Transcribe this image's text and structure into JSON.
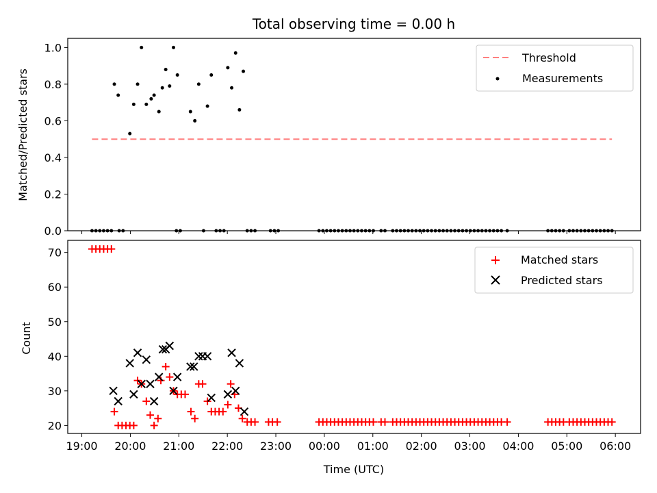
{
  "title": "Total observing time = 0.00 h",
  "chart_data": [
    {
      "type": "scatter",
      "ylabel": "Matched/Predicted stars",
      "xlabel": "",
      "xlim": [
        18.71,
        30.52
      ],
      "ylim": [
        0,
        1.05
      ],
      "x_ticks": [
        19,
        20,
        21,
        22,
        23,
        24,
        25,
        26,
        27,
        28,
        29,
        30
      ],
      "y_ticks": [
        0.0,
        0.2,
        0.4,
        0.6,
        0.8,
        1.0
      ],
      "y_tick_labels": [
        "0.0",
        "0.2",
        "0.4",
        "0.6",
        "0.8",
        "1.0"
      ],
      "grid": false,
      "legend": {
        "placement": "top-right",
        "entries": [
          "Threshold",
          "Measurements"
        ]
      },
      "series": [
        {
          "name": "Threshold",
          "kind": "dashed-line",
          "color": "#ff7f7f",
          "x": [
            19.21,
            29.93
          ],
          "y": [
            0.5,
            0.5
          ]
        },
        {
          "name": "Measurements",
          "kind": "dots",
          "color": "#000000",
          "points": [
            [
              19.21,
              0
            ],
            [
              19.29,
              0
            ],
            [
              19.37,
              0
            ],
            [
              19.45,
              0
            ],
            [
              19.53,
              0
            ],
            [
              19.61,
              0
            ],
            [
              19.77,
              0
            ],
            [
              19.85,
              0
            ],
            [
              20.95,
              0
            ],
            [
              21.03,
              0
            ],
            [
              21.51,
              0
            ],
            [
              21.77,
              0
            ],
            [
              21.85,
              0
            ],
            [
              21.93,
              0
            ],
            [
              22.41,
              0
            ],
            [
              22.49,
              0
            ],
            [
              22.57,
              0
            ],
            [
              22.89,
              0
            ],
            [
              22.97,
              0
            ],
            [
              23.05,
              0
            ],
            [
              23.89,
              0
            ],
            [
              23.97,
              0
            ],
            [
              24.05,
              0
            ],
            [
              24.13,
              0
            ],
            [
              24.21,
              0
            ],
            [
              24.29,
              0
            ],
            [
              24.37,
              0
            ],
            [
              24.45,
              0
            ],
            [
              24.53,
              0
            ],
            [
              24.61,
              0
            ],
            [
              24.69,
              0
            ],
            [
              24.77,
              0
            ],
            [
              24.85,
              0
            ],
            [
              24.93,
              0
            ],
            [
              25.01,
              0
            ],
            [
              25.17,
              0
            ],
            [
              25.25,
              0
            ],
            [
              25.41,
              0
            ],
            [
              25.49,
              0
            ],
            [
              25.57,
              0
            ],
            [
              25.65,
              0
            ],
            [
              25.73,
              0
            ],
            [
              25.81,
              0
            ],
            [
              25.89,
              0
            ],
            [
              25.97,
              0
            ],
            [
              26.05,
              0
            ],
            [
              26.13,
              0
            ],
            [
              26.21,
              0
            ],
            [
              26.29,
              0
            ],
            [
              26.37,
              0
            ],
            [
              26.45,
              0
            ],
            [
              26.53,
              0
            ],
            [
              26.61,
              0
            ],
            [
              26.69,
              0
            ],
            [
              26.77,
              0
            ],
            [
              26.85,
              0
            ],
            [
              26.93,
              0
            ],
            [
              27.01,
              0
            ],
            [
              27.09,
              0
            ],
            [
              27.17,
              0
            ],
            [
              27.25,
              0
            ],
            [
              27.33,
              0
            ],
            [
              27.41,
              0
            ],
            [
              27.49,
              0
            ],
            [
              27.57,
              0
            ],
            [
              27.65,
              0
            ],
            [
              27.77,
              0
            ],
            [
              28.61,
              0
            ],
            [
              28.69,
              0
            ],
            [
              28.77,
              0
            ],
            [
              28.85,
              0
            ],
            [
              28.93,
              0
            ],
            [
              29.05,
              0
            ],
            [
              29.13,
              0
            ],
            [
              29.21,
              0
            ],
            [
              29.29,
              0
            ],
            [
              29.37,
              0
            ],
            [
              29.45,
              0
            ],
            [
              29.53,
              0
            ],
            [
              29.61,
              0
            ],
            [
              29.69,
              0
            ],
            [
              29.77,
              0
            ],
            [
              29.85,
              0
            ],
            [
              29.93,
              0
            ],
            [
              19.67,
              0.8
            ],
            [
              19.75,
              0.74
            ],
            [
              19.99,
              0.53
            ],
            [
              20.07,
              0.69
            ],
            [
              20.15,
              0.8
            ],
            [
              20.23,
              1.0
            ],
            [
              20.33,
              0.69
            ],
            [
              20.43,
              0.72
            ],
            [
              20.49,
              0.74
            ],
            [
              20.59,
              0.65
            ],
            [
              20.66,
              0.78
            ],
            [
              20.73,
              0.88
            ],
            [
              20.81,
              0.79
            ],
            [
              20.89,
              1.0
            ],
            [
              20.97,
              0.85
            ],
            [
              21.24,
              0.65
            ],
            [
              21.33,
              0.6
            ],
            [
              21.41,
              0.8
            ],
            [
              21.59,
              0.68
            ],
            [
              21.67,
              0.85
            ],
            [
              22.01,
              0.89
            ],
            [
              22.09,
              0.78
            ],
            [
              22.17,
              0.97
            ],
            [
              22.25,
              0.66
            ],
            [
              22.33,
              0.87
            ]
          ]
        }
      ]
    },
    {
      "type": "scatter",
      "ylabel": "Count",
      "xlabel": "Time (UTC)",
      "xlim": [
        18.71,
        30.52
      ],
      "ylim": [
        17.7,
        73.5
      ],
      "x_ticks": [
        19,
        20,
        21,
        22,
        23,
        24,
        25,
        26,
        27,
        28,
        29,
        30
      ],
      "x_tick_labels": [
        "19:00",
        "20:00",
        "21:00",
        "22:00",
        "23:00",
        "00:00",
        "01:00",
        "02:00",
        "03:00",
        "04:00",
        "05:00",
        "06:00"
      ],
      "y_ticks": [
        20,
        30,
        40,
        50,
        60,
        70
      ],
      "y_tick_labels": [
        "20",
        "30",
        "40",
        "50",
        "60",
        "70"
      ],
      "grid": false,
      "legend": {
        "placement": "top-right",
        "entries": [
          "Matched stars",
          "Predicted stars"
        ]
      },
      "series": [
        {
          "name": "Matched stars",
          "kind": "plus",
          "color": "#ff0000",
          "points": [
            [
              19.21,
              71
            ],
            [
              19.29,
              71
            ],
            [
              19.37,
              71
            ],
            [
              19.45,
              71
            ],
            [
              19.53,
              71
            ],
            [
              19.61,
              71
            ],
            [
              19.67,
              24
            ],
            [
              19.75,
              20
            ],
            [
              19.83,
              20
            ],
            [
              19.91,
              20
            ],
            [
              19.99,
              20
            ],
            [
              20.07,
              20
            ],
            [
              20.15,
              33
            ],
            [
              20.23,
              32
            ],
            [
              20.33,
              27
            ],
            [
              20.41,
              23
            ],
            [
              20.49,
              20
            ],
            [
              20.57,
              22
            ],
            [
              20.63,
              33
            ],
            [
              20.73,
              37
            ],
            [
              20.81,
              34
            ],
            [
              20.89,
              30
            ],
            [
              20.97,
              29
            ],
            [
              21.05,
              29
            ],
            [
              21.13,
              29
            ],
            [
              21.25,
              24
            ],
            [
              21.33,
              22
            ],
            [
              21.41,
              32
            ],
            [
              21.49,
              32
            ],
            [
              21.59,
              27
            ],
            [
              21.67,
              24
            ],
            [
              21.75,
              24
            ],
            [
              21.83,
              24
            ],
            [
              21.91,
              24
            ],
            [
              22.01,
              26
            ],
            [
              22.07,
              32
            ],
            [
              22.15,
              29
            ],
            [
              22.23,
              25
            ],
            [
              22.31,
              22
            ],
            [
              22.41,
              21
            ],
            [
              22.49,
              21
            ],
            [
              22.57,
              21
            ],
            [
              22.85,
              21
            ],
            [
              22.93,
              21
            ],
            [
              23.03,
              21
            ],
            [
              23.89,
              21
            ],
            [
              23.97,
              21
            ],
            [
              24.05,
              21
            ],
            [
              24.13,
              21
            ],
            [
              24.21,
              21
            ],
            [
              24.29,
              21
            ],
            [
              24.37,
              21
            ],
            [
              24.45,
              21
            ],
            [
              24.53,
              21
            ],
            [
              24.61,
              21
            ],
            [
              24.69,
              21
            ],
            [
              24.77,
              21
            ],
            [
              24.85,
              21
            ],
            [
              24.93,
              21
            ],
            [
              25.01,
              21
            ],
            [
              25.17,
              21
            ],
            [
              25.25,
              21
            ],
            [
              25.41,
              21
            ],
            [
              25.49,
              21
            ],
            [
              25.57,
              21
            ],
            [
              25.65,
              21
            ],
            [
              25.73,
              21
            ],
            [
              25.81,
              21
            ],
            [
              25.89,
              21
            ],
            [
              25.97,
              21
            ],
            [
              26.05,
              21
            ],
            [
              26.13,
              21
            ],
            [
              26.21,
              21
            ],
            [
              26.29,
              21
            ],
            [
              26.37,
              21
            ],
            [
              26.45,
              21
            ],
            [
              26.53,
              21
            ],
            [
              26.61,
              21
            ],
            [
              26.69,
              21
            ],
            [
              26.77,
              21
            ],
            [
              26.85,
              21
            ],
            [
              26.93,
              21
            ],
            [
              27.01,
              21
            ],
            [
              27.09,
              21
            ],
            [
              27.17,
              21
            ],
            [
              27.25,
              21
            ],
            [
              27.33,
              21
            ],
            [
              27.41,
              21
            ],
            [
              27.49,
              21
            ],
            [
              27.57,
              21
            ],
            [
              27.65,
              21
            ],
            [
              27.77,
              21
            ],
            [
              28.61,
              21
            ],
            [
              28.69,
              21
            ],
            [
              28.77,
              21
            ],
            [
              28.85,
              21
            ],
            [
              28.93,
              21
            ],
            [
              29.05,
              21
            ],
            [
              29.13,
              21
            ],
            [
              29.21,
              21
            ],
            [
              29.29,
              21
            ],
            [
              29.37,
              21
            ],
            [
              29.45,
              21
            ],
            [
              29.53,
              21
            ],
            [
              29.61,
              21
            ],
            [
              29.69,
              21
            ],
            [
              29.77,
              21
            ],
            [
              29.85,
              21
            ],
            [
              29.93,
              21
            ]
          ]
        },
        {
          "name": "Predicted stars",
          "kind": "x",
          "color": "#000000",
          "points": [
            [
              19.65,
              30
            ],
            [
              19.75,
              27
            ],
            [
              19.99,
              38
            ],
            [
              20.07,
              29
            ],
            [
              20.15,
              41
            ],
            [
              20.23,
              32
            ],
            [
              20.33,
              39
            ],
            [
              20.41,
              32
            ],
            [
              20.49,
              27
            ],
            [
              20.59,
              34
            ],
            [
              20.67,
              42
            ],
            [
              20.73,
              42
            ],
            [
              20.81,
              43
            ],
            [
              20.89,
              30
            ],
            [
              20.97,
              34
            ],
            [
              21.24,
              37
            ],
            [
              21.31,
              37
            ],
            [
              21.41,
              40
            ],
            [
              21.49,
              40
            ],
            [
              21.59,
              40
            ],
            [
              21.67,
              28
            ],
            [
              22.01,
              29
            ],
            [
              22.09,
              41
            ],
            [
              22.17,
              30
            ],
            [
              22.25,
              38
            ],
            [
              22.35,
              24
            ]
          ]
        }
      ]
    }
  ]
}
